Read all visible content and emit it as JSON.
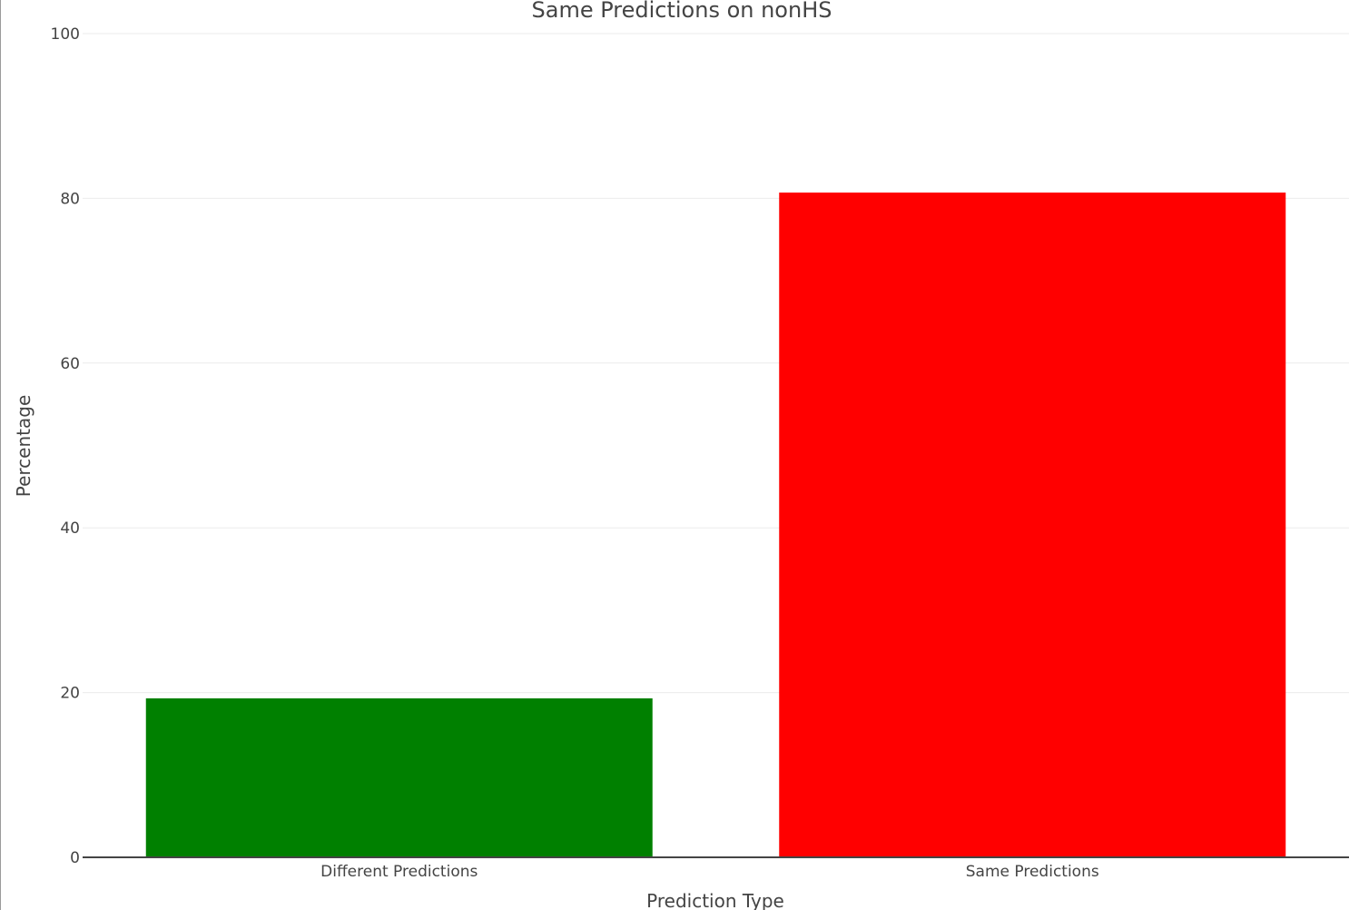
{
  "chart_data": {
    "type": "bar",
    "title": "Same Predictions on nonHS",
    "xlabel": "Prediction Type",
    "ylabel": "Percentage",
    "categories": [
      "Different Predictions",
      "Same Predictions"
    ],
    "values": [
      19.3,
      80.7
    ],
    "colors": [
      "#008000",
      "#ff0000"
    ],
    "ylim": [
      0,
      100
    ],
    "yticks": [
      0,
      20,
      40,
      60,
      80,
      100
    ],
    "grid": true,
    "legend": false
  }
}
